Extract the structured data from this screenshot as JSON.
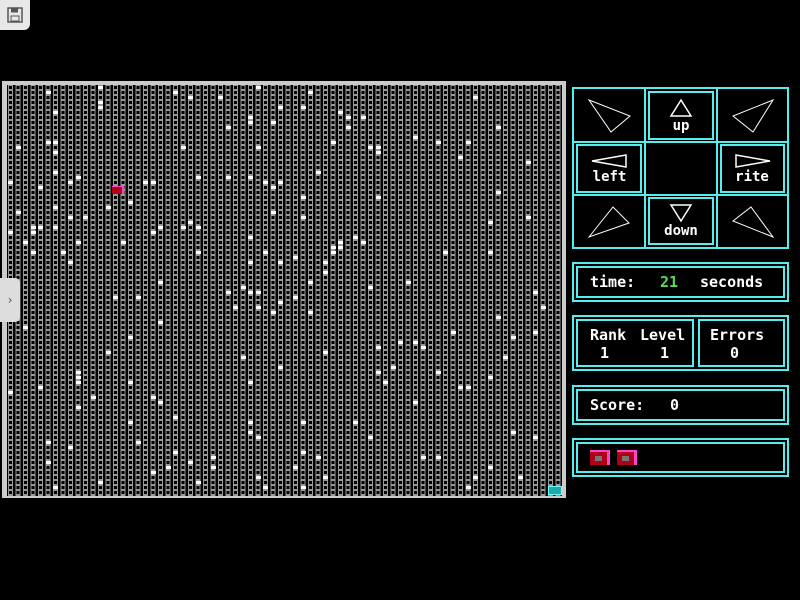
{
  "toolbar": {
    "save_icon": "floppy-disk-icon"
  },
  "controls": {
    "up": "up",
    "left": "left",
    "rite": "rite",
    "down": "down"
  },
  "time": {
    "label": "time:",
    "value": "21",
    "unit": "seconds"
  },
  "stats": {
    "rank_label": "Rank",
    "level_label": "Level",
    "errors_label": "Errors",
    "rank": "1",
    "level": "1",
    "errors": "0"
  },
  "score": {
    "label": "Score:",
    "value": "0"
  },
  "lives": 2,
  "colors": {
    "frame": "#55eeee",
    "time_value": "#55dd55",
    "player": "#b00018",
    "exit": "#22aaaa"
  }
}
